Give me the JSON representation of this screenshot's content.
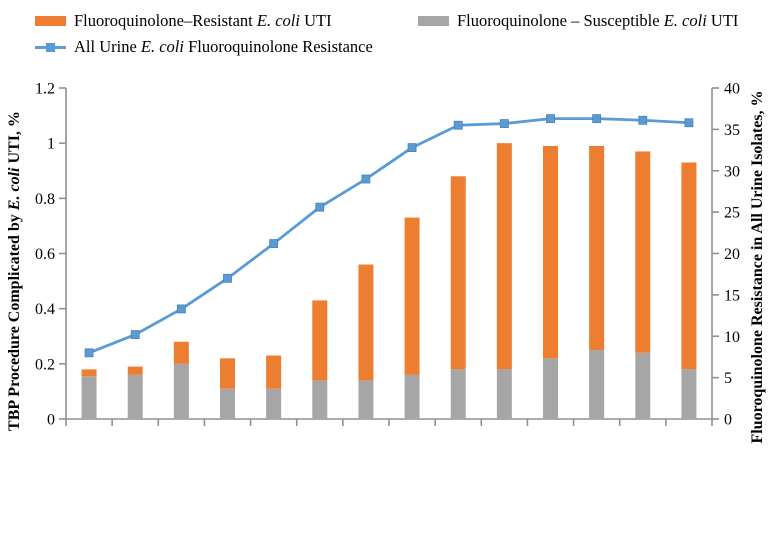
{
  "chart_data": {
    "type": "combo_stacked_bar_line",
    "n_categories": 14,
    "categories": [
      "",
      "",
      "",
      "",
      "",
      "",
      "",
      "",
      "",
      "",
      "",
      "",
      "",
      ""
    ],
    "x_axis": {
      "labels_visible": false,
      "tick_marks_at_category_boundaries": true
    },
    "series": [
      {
        "name": "Fluoroquinolone-Susceptible E. coli UTI",
        "type": "bar",
        "stack_position": "bottom",
        "axis": "left",
        "color": "#A6A6A6",
        "values": [
          0.155,
          0.16,
          0.2,
          0.11,
          0.11,
          0.14,
          0.14,
          0.16,
          0.18,
          0.18,
          0.22,
          0.25,
          0.24,
          0.18
        ]
      },
      {
        "name": "Fluoroquinolone-Resistant E. coli UTI",
        "type": "bar",
        "stack_position": "top",
        "axis": "left",
        "color": "#ED7D31",
        "values": [
          0.025,
          0.03,
          0.08,
          0.11,
          0.12,
          0.29,
          0.42,
          0.57,
          0.7,
          0.82,
          0.77,
          0.74,
          0.73,
          0.75
        ]
      },
      {
        "name": "All Urine E. coli Fluoroquinolone Resistance",
        "type": "line",
        "axis": "right",
        "color": "#5B9BD5",
        "marker": "square",
        "marker_border": "#4A7FB5",
        "values": [
          8.0,
          10.2,
          13.3,
          17.0,
          21.2,
          25.6,
          29.0,
          32.8,
          35.5,
          35.7,
          36.3,
          36.3,
          36.1,
          35.8
        ]
      }
    ],
    "stack_totals": [
      0.18,
      0.19,
      0.28,
      0.22,
      0.23,
      0.43,
      0.56,
      0.73,
      0.88,
      1.0,
      0.99,
      0.99,
      0.97,
      0.93
    ],
    "left_axis": {
      "title": "TBP Procedure Complicated by E. coli UTI, %",
      "title_pre": "TBP Procedure Complicated by ",
      "title_italic": "E. coli",
      "title_post": " UTI, %",
      "min": 0,
      "max": 1.2,
      "ticks": [
        "0",
        "0.2",
        "0.4",
        "0.6",
        "0.8",
        "1",
        "1.2"
      ]
    },
    "right_axis": {
      "title": "Fluoroquinolone Resistance in All Urine Isolates, %",
      "min": 0,
      "max": 40,
      "ticks": [
        "0",
        "5",
        "10",
        "15",
        "20",
        "25",
        "30",
        "35",
        "40"
      ]
    },
    "grid": "off",
    "legend_position": "top-left",
    "axis_color": "#909090"
  },
  "legend": {
    "items": [
      {
        "pre": "Fluoroquinolone–Resistant ",
        "italic": "E. coli",
        "post": "  UTI",
        "swatch": "bar",
        "color": "#ED7D31"
      },
      {
        "pre": "Fluoroquinolone – Susceptible ",
        "italic": "E. coli",
        "post": " UTI",
        "swatch": "bar",
        "color": "#A6A6A6"
      },
      {
        "pre": "All Urine ",
        "italic": "E. coli",
        "post": " Fluoroquinolone Resistance",
        "swatch": "line-marker",
        "color": "#5B9BD5"
      }
    ]
  }
}
